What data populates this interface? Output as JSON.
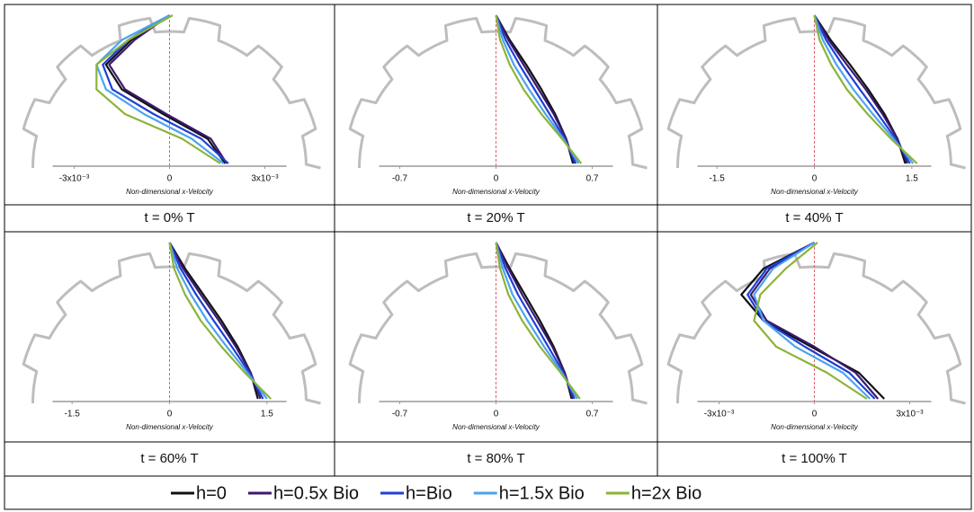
{
  "chart_data": [
    {
      "type": "line",
      "caption": "t = 0% T",
      "xlabel": "Non-dimensional x-Velocity",
      "xlim": [
        -0.00368,
        0.00368
      ],
      "xticks": [
        {
          "value": -0.003,
          "label": "-3x10⁻³"
        },
        0,
        {
          "value": 0.003,
          "label": "3x10⁻³"
        }
      ],
      "categories": [
        null,
        null,
        null,
        null,
        null,
        null,
        null
      ],
      "series": [
        {
          "values": [
            0,
            -0.0012,
            -0.002,
            -0.0015,
            -0.0002,
            0.0012,
            0.00175
          ]
        },
        {
          "values": [
            0,
            -0.0011,
            -0.0019,
            -0.0014,
            -0.0001,
            0.0013,
            0.0018
          ]
        },
        {
          "values": [
            0,
            -0.0013,
            -0.0021,
            -0.0018,
            -0.0005,
            0.001,
            0.00185
          ]
        },
        {
          "values": [
            0,
            -0.0015,
            -0.0023,
            -0.002,
            -0.0008,
            0.0007,
            0.0017
          ]
        },
        {
          "values": [
            0.0001,
            -0.0013,
            -0.0023,
            -0.0023,
            -0.0014,
            0.0004,
            0.0016
          ]
        }
      ]
    },
    {
      "type": "line",
      "caption": "t = 20% T",
      "xlabel": "Non-dimensional x-Velocity",
      "xlim": [
        -0.85,
        0.85
      ],
      "xticks": [
        -0.7,
        0,
        0.7
      ],
      "categories": [
        null,
        null,
        null,
        null,
        null,
        null,
        null
      ],
      "series": [
        {
          "values": [
            0,
            0.1,
            0.22,
            0.33,
            0.43,
            0.51,
            0.56
          ]
        },
        {
          "values": [
            0,
            0.09,
            0.2,
            0.31,
            0.42,
            0.51,
            0.57
          ]
        },
        {
          "values": [
            0,
            0.07,
            0.17,
            0.28,
            0.39,
            0.5,
            0.58
          ]
        },
        {
          "values": [
            0,
            0.05,
            0.13,
            0.24,
            0.36,
            0.49,
            0.6
          ]
        },
        {
          "values": [
            0,
            0.03,
            0.1,
            0.2,
            0.33,
            0.48,
            0.62
          ]
        }
      ]
    },
    {
      "type": "line",
      "caption": "t = 40% T",
      "xlabel": "Non-dimensional x-Velocity",
      "xlim": [
        -1.8,
        1.8
      ],
      "xticks": [
        -1.5,
        0,
        1.5
      ],
      "categories": [
        null,
        null,
        null,
        null,
        null,
        null,
        null
      ],
      "series": [
        {
          "values": [
            0,
            0.25,
            0.55,
            0.83,
            1.08,
            1.28,
            1.4
          ]
        },
        {
          "values": [
            0,
            0.22,
            0.5,
            0.79,
            1.05,
            1.28,
            1.43
          ]
        },
        {
          "values": [
            0,
            0.18,
            0.43,
            0.7,
            0.98,
            1.25,
            1.47
          ]
        },
        {
          "values": [
            0,
            0.13,
            0.34,
            0.6,
            0.9,
            1.22,
            1.52
          ]
        },
        {
          "values": [
            0,
            0.08,
            0.26,
            0.5,
            0.82,
            1.18,
            1.58
          ]
        }
      ]
    },
    {
      "type": "line",
      "caption": "t = 60% T",
      "xlabel": "Non-dimensional x-Velocity",
      "xlim": [
        -1.8,
        1.8
      ],
      "xticks": [
        -1.5,
        0,
        1.5
      ],
      "categories": [
        null,
        null,
        null,
        null,
        null,
        null,
        null
      ],
      "series": [
        {
          "values": [
            0,
            0.24,
            0.52,
            0.8,
            1.05,
            1.25,
            1.36
          ]
        },
        {
          "values": [
            0,
            0.21,
            0.48,
            0.76,
            1.02,
            1.25,
            1.4
          ]
        },
        {
          "values": [
            0,
            0.17,
            0.41,
            0.68,
            0.96,
            1.23,
            1.44
          ]
        },
        {
          "values": [
            0,
            0.12,
            0.33,
            0.58,
            0.88,
            1.2,
            1.5
          ]
        },
        {
          "values": [
            0,
            0.07,
            0.24,
            0.48,
            0.8,
            1.16,
            1.56
          ]
        }
      ]
    },
    {
      "type": "line",
      "caption": "t = 80% T",
      "xlabel": "Non-dimensional x-Velocity",
      "xlim": [
        -0.85,
        0.85
      ],
      "xticks": [
        -0.7,
        0,
        0.7
      ],
      "categories": [
        null,
        null,
        null,
        null,
        null,
        null,
        null
      ],
      "series": [
        {
          "values": [
            0,
            0.1,
            0.21,
            0.32,
            0.42,
            0.5,
            0.55
          ]
        },
        {
          "values": [
            0,
            0.09,
            0.19,
            0.3,
            0.41,
            0.5,
            0.56
          ]
        },
        {
          "values": [
            0,
            0.07,
            0.16,
            0.27,
            0.38,
            0.49,
            0.57
          ]
        },
        {
          "values": [
            0,
            0.05,
            0.12,
            0.23,
            0.35,
            0.48,
            0.59
          ]
        },
        {
          "values": [
            0,
            0.03,
            0.09,
            0.19,
            0.32,
            0.47,
            0.61
          ]
        }
      ]
    },
    {
      "type": "line",
      "caption": "t = 100% T",
      "xlabel": "Non-dimensional x-Velocity",
      "xlim": [
        -0.00368,
        0.00368
      ],
      "xticks": [
        {
          "value": -0.003,
          "label": "-3x10⁻³"
        },
        0,
        {
          "value": 0.003,
          "label": "3x10⁻³"
        }
      ],
      "categories": [
        null,
        null,
        null,
        null,
        null,
        null,
        null
      ],
      "series": [
        {
          "values": [
            0,
            -0.0016,
            -0.0023,
            -0.0016,
            -0.0001,
            0.0014,
            0.0022
          ]
        },
        {
          "values": [
            0,
            -0.0014,
            -0.002,
            -0.0015,
            0,
            0.0013,
            0.002
          ]
        },
        {
          "values": [
            0,
            -0.0015,
            -0.0021,
            -0.0016,
            -0.0003,
            0.0011,
            0.0019
          ]
        },
        {
          "values": [
            0,
            -0.0013,
            -0.0019,
            -0.0016,
            -0.0006,
            0.0009,
            0.00175
          ]
        },
        {
          "values": [
            0.0001,
            -0.0009,
            -0.0017,
            -0.0019,
            -0.0012,
            0.0004,
            0.00165
          ]
        }
      ]
    }
  ],
  "legend": [
    {
      "name": "h=0",
      "color": "#111111"
    },
    {
      "name": "h=0.5x Bio",
      "color": "#3b1a6e"
    },
    {
      "name": "h=Bio",
      "color": "#1f3fd6"
    },
    {
      "name": "h=1.5x Bio",
      "color": "#4aa3f0"
    },
    {
      "name": "h=2x Bio",
      "color": "#8db33a"
    }
  ]
}
